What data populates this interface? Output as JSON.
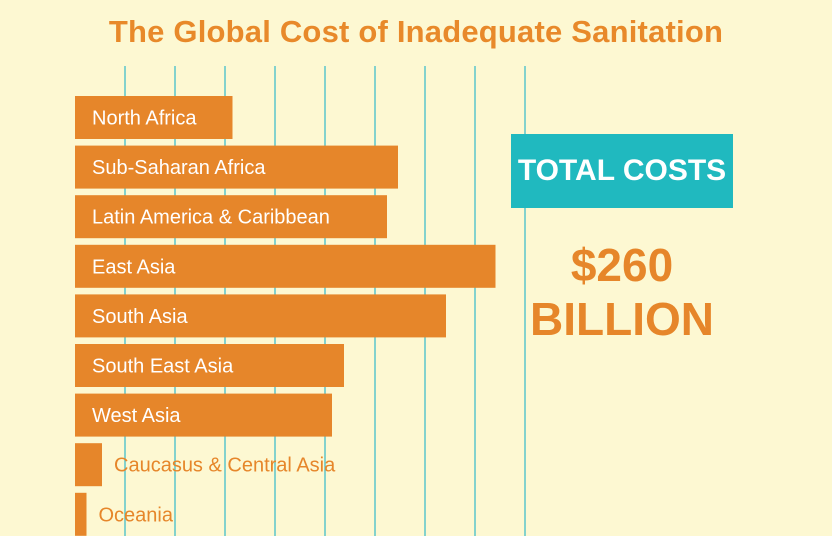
{
  "title": "The Global Cost of Inadequate Sanitation",
  "total": {
    "label": "TOTAL COSTS",
    "amount": "$260",
    "unit": "BILLION"
  },
  "colors": {
    "background": "#fdf8d2",
    "bar": "#e6862a",
    "grid": "#4fc1cb",
    "accent": "#20b9bf"
  },
  "chart_data": {
    "type": "bar",
    "orientation": "horizontal",
    "title": "The Global Cost of Inadequate Sanitation",
    "xlabel": "",
    "ylabel": "",
    "grid": true,
    "categories": [
      "North Africa",
      "Sub-Saharan Africa",
      "Latin America & Caribbean",
      "East Asia",
      "South Asia",
      "South East Asia",
      "West Asia",
      "Caucasus & Central Asia",
      "Oceania"
    ],
    "values": [
      31.5,
      64.6,
      62.4,
      84.1,
      74.2,
      53.8,
      51.4,
      5.4,
      2.3
    ],
    "xlim": [
      0,
      90
    ]
  }
}
